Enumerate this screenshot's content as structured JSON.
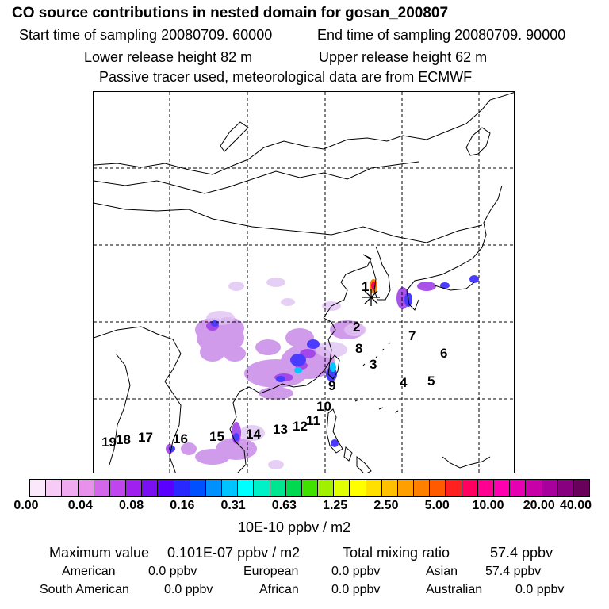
{
  "header": {
    "title": "CO  source contributions in nested domain for gosan_200807",
    "start_time": "Start time of sampling 20080709. 60000",
    "end_time": "End time of sampling 20080709. 90000",
    "lower_release": "Lower release height   82 m",
    "upper_release": "Upper release height   62 m",
    "tracer_note": "Passive tracer used, meteorological data are from ECMWF"
  },
  "map": {
    "receptor_marker": "receptor-star",
    "region_numbers": [
      "1",
      "2",
      "3",
      "4",
      "5",
      "6",
      "7",
      "8",
      "9",
      "10",
      "11",
      "12",
      "13",
      "14",
      "15",
      "16",
      "17",
      "18",
      "19"
    ]
  },
  "colorbar": {
    "tick_labels": [
      "0.00",
      "0.04",
      "0.08",
      "0.16",
      "0.31",
      "0.63",
      "1.25",
      "2.50",
      "5.00",
      "10.00",
      "20.00",
      "40.00"
    ],
    "unit": "10E-10 ppbv / m2",
    "colors": [
      "#fbe8fb",
      "#f6ccf6",
      "#efaaf0",
      "#e890ea",
      "#d466ec",
      "#c045ee",
      "#a020f0",
      "#7a10f2",
      "#5a00ff",
      "#2828ff",
      "#0050ff",
      "#0090ff",
      "#00c4ff",
      "#00ffff",
      "#00f0c8",
      "#00e690",
      "#00d850",
      "#40e000",
      "#a0f000",
      "#e0ff00",
      "#ffff00",
      "#ffe000",
      "#ffc000",
      "#ffa000",
      "#ff8000",
      "#ff5a00",
      "#ff2020",
      "#ff0060",
      "#ff0090",
      "#ff00b0",
      "#e600b4",
      "#c800a8",
      "#a8009c",
      "#880080",
      "#68005c"
    ]
  },
  "footer": {
    "max_label": "Maximum value",
    "max_value": "0.101E-07 ppbv / m2",
    "total_label": "Total mixing ratio",
    "total_value": "57.4 ppbv",
    "american_label": "American",
    "american_value": "0.0 ppbv",
    "european_label": "European",
    "european_value": "0.0 ppbv",
    "asian_label": "Asian",
    "asian_value": "57.4 ppbv",
    "south_american_label": "South American",
    "south_american_value": "0.0 ppbv",
    "african_label": "African",
    "african_value": "0.0 ppbv",
    "australian_label": "Australian",
    "australian_value": "0.0 ppbv"
  }
}
